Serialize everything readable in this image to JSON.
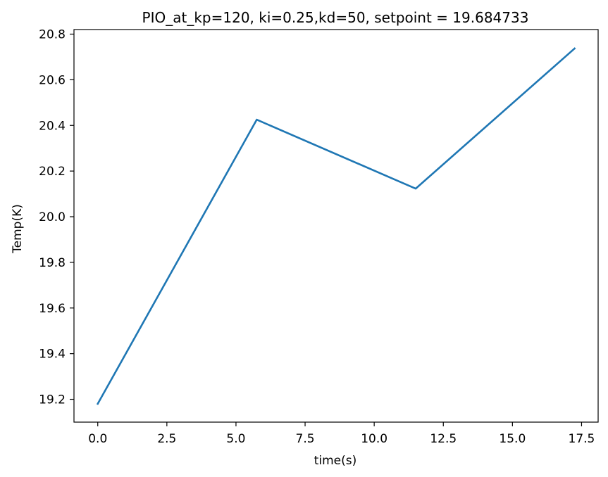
{
  "chart_data": {
    "type": "line",
    "title": "PIO_at_kp=120, ki=0.25,kd=50, setpoint = 19.684733",
    "xlabel": "time(s)",
    "ylabel": "Temp(K)",
    "xlim": [
      -0.86,
      18.1
    ],
    "ylim": [
      19.1,
      20.82
    ],
    "xticks": [
      0.0,
      2.5,
      5.0,
      7.5,
      10.0,
      12.5,
      15.0,
      17.5
    ],
    "xtick_labels": [
      "0.0",
      "2.5",
      "5.0",
      "7.5",
      "10.0",
      "12.5",
      "15.0",
      "17.5"
    ],
    "yticks": [
      19.2,
      19.4,
      19.6,
      19.8,
      20.0,
      20.2,
      20.4,
      20.6,
      20.8
    ],
    "ytick_labels": [
      "19.2",
      "19.4",
      "19.6",
      "19.8",
      "20.0",
      "20.2",
      "20.4",
      "20.6",
      "20.8"
    ],
    "grid": false,
    "series": [
      {
        "color": "#1f77b4",
        "x": [
          0.0,
          5.75,
          11.5,
          17.25
        ],
        "y": [
          19.18,
          20.425,
          20.123,
          20.737
        ]
      }
    ]
  }
}
